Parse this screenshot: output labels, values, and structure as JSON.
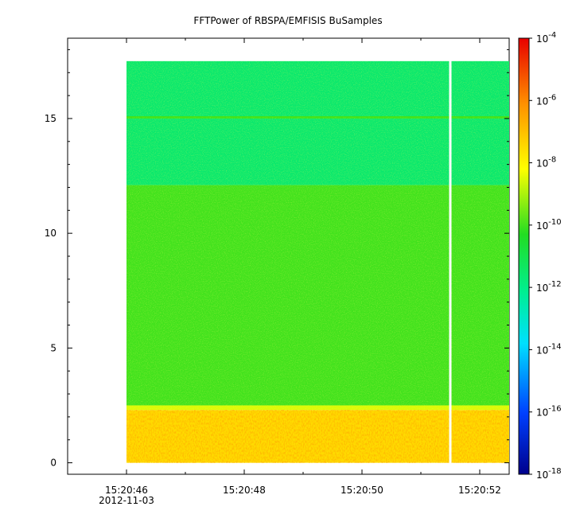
{
  "chart_data": {
    "type": "heatmap",
    "title": "FFTPower of RBSPA/EMFISIS  BuSamples",
    "y_ticks": [
      0,
      5,
      10,
      15
    ],
    "ylim": [
      -0.5,
      18.5
    ],
    "x_ticks": [
      "15:20:46",
      "15:20:48",
      "15:20:50",
      "15:20:52"
    ],
    "x_date_label": "2012-11-03",
    "x_start": "15:20:45",
    "x_end": "15:20:52.5",
    "data_x_start": "15:20:46",
    "data_gap_at": "15:20:51.5",
    "freq_max": 17.5,
    "colorbar": {
      "scale": "log",
      "range": [
        1e-18,
        0.0001
      ],
      "tick_base": "10",
      "tick_exponents": [
        "-4",
        "-6",
        "-8",
        "-10",
        "-12",
        "-14",
        "-16",
        "-18"
      ]
    },
    "bands": [
      {
        "freq_range": [
          12.1,
          17.5
        ],
        "power": 3e-12
      },
      {
        "freq_range": [
          15.0,
          15.1
        ],
        "power": 1e-10
      },
      {
        "freq_range": [
          2.5,
          12.1
        ],
        "power": 1e-10
      },
      {
        "freq_range": [
          0,
          2.3
        ],
        "power": 3e-08
      }
    ]
  }
}
